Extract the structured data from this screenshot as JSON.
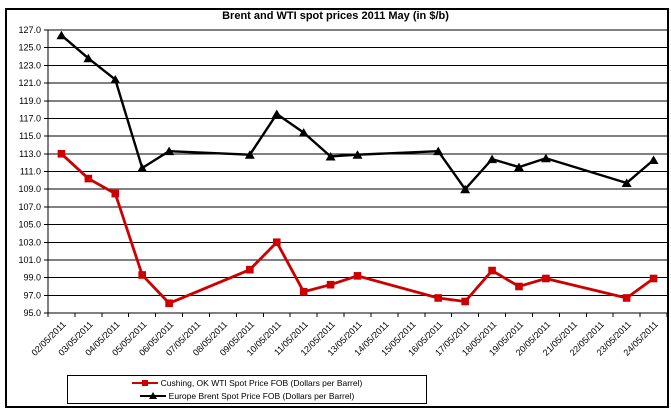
{
  "chart_data": {
    "type": "line",
    "title": "Brent and WTI spot prices 2011 May (in $/b)",
    "xlabel": "",
    "ylabel": "",
    "grid": "horizontal",
    "legend_position": "bottom",
    "y_axis": {
      "min": 95.0,
      "max": 127.0,
      "step": 2.0,
      "decimals": 1
    },
    "x_labels": [
      "02/05/2011",
      "03/05/2011",
      "04/05/2011",
      "05/05/2011",
      "06/05/2011",
      "07/05/2011",
      "08/05/2011",
      "09/05/2011",
      "10/05/2011",
      "11/05/2011",
      "12/05/2011",
      "13/05/2011",
      "14/05/2011",
      "15/05/2011",
      "16/05/2011",
      "17/05/2011",
      "18/05/2011",
      "19/05/2011",
      "20/05/2011",
      "21/05/2011",
      "22/05/2011",
      "23/05/2011",
      "24/05/2011"
    ],
    "series": [
      {
        "name": "Cushing, OK WTI Spot Price FOB (Dollars per Barrel)",
        "color": "#cc0000",
        "marker": "square",
        "values": [
          113.0,
          110.2,
          108.5,
          99.3,
          96.1,
          null,
          null,
          99.9,
          103.0,
          97.4,
          98.2,
          99.2,
          null,
          null,
          96.7,
          96.3,
          99.8,
          98.0,
          98.9,
          null,
          null,
          96.7,
          98.9
        ]
      },
      {
        "name": "Europe Brent Spot Price FOB (Dollars per Barrel)",
        "color": "#000000",
        "marker": "triangle",
        "values": [
          126.4,
          123.8,
          121.4,
          111.4,
          113.3,
          null,
          null,
          112.9,
          117.5,
          115.4,
          112.7,
          112.9,
          null,
          null,
          113.3,
          109.0,
          112.4,
          111.5,
          112.5,
          null,
          null,
          109.7,
          112.3
        ]
      }
    ]
  }
}
